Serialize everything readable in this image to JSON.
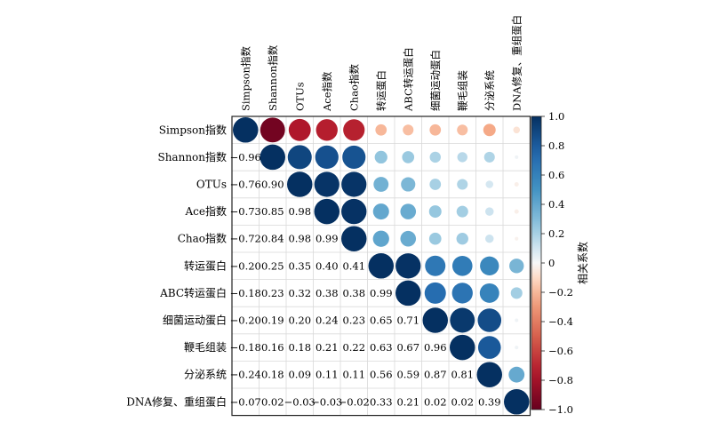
{
  "chart_data": {
    "type": "heatmap",
    "variables": [
      "Simpson指数",
      "Shannon指数",
      "OTUs",
      "Ace指数",
      "Chao指数",
      "转运蛋白",
      "ABC转运蛋白",
      "细菌运动蛋白",
      "鞭毛组装",
      "分泌系统",
      "DNA修复、重组蛋白"
    ],
    "matrix": [
      [
        1.0,
        -0.96,
        -0.76,
        -0.73,
        -0.72,
        -0.2,
        -0.18,
        -0.2,
        -0.18,
        -0.24,
        -0.07
      ],
      [
        -0.96,
        1.0,
        0.9,
        0.85,
        0.84,
        0.25,
        0.23,
        0.19,
        0.16,
        0.18,
        0.02
      ],
      [
        -0.76,
        0.9,
        1.0,
        0.98,
        0.98,
        0.35,
        0.32,
        0.2,
        0.18,
        0.09,
        -0.03
      ],
      [
        -0.73,
        0.85,
        0.98,
        1.0,
        0.99,
        0.4,
        0.38,
        0.24,
        0.21,
        0.11,
        -0.03
      ],
      [
        -0.72,
        0.84,
        0.98,
        0.99,
        1.0,
        0.41,
        0.38,
        0.23,
        0.22,
        0.11,
        -0.02
      ],
      [
        -0.2,
        0.25,
        0.35,
        0.4,
        0.41,
        1.0,
        0.99,
        0.65,
        0.63,
        0.56,
        0.33
      ],
      [
        -0.18,
        0.23,
        0.32,
        0.38,
        0.38,
        0.99,
        1.0,
        0.71,
        0.67,
        0.59,
        0.21
      ],
      [
        -0.2,
        0.19,
        0.2,
        0.24,
        0.23,
        0.65,
        0.71,
        1.0,
        0.96,
        0.87,
        0.02
      ],
      [
        -0.18,
        0.16,
        0.18,
        0.21,
        0.22,
        0.63,
        0.67,
        0.96,
        1.0,
        0.81,
        0.02
      ],
      [
        -0.24,
        0.18,
        0.09,
        0.11,
        0.11,
        0.56,
        0.59,
        0.87,
        0.81,
        1.0,
        0.39
      ],
      [
        -0.07,
        0.02,
        -0.03,
        -0.03,
        -0.02,
        0.33,
        0.21,
        0.02,
        0.02,
        0.39,
        1.0
      ]
    ],
    "lower_triangle_shows_numbers": true,
    "upper_triangle_shows_circles": true,
    "colorbar": {
      "title": "相关系数",
      "range": [
        -1.0,
        1.0
      ],
      "tick_labels": [
        "1.0",
        "0.8",
        "0.6",
        "0.4",
        "0.2",
        "0",
        "−0.2",
        "−0.4",
        "−0.6",
        "−0.8",
        "−1.0"
      ],
      "colors": {
        "strong_negative": "#67001f",
        "negative": "#d6604d",
        "light_negative": "#fddbc7",
        "neutral": "#f7f7f7",
        "light_positive": "#d1e5f0",
        "positive": "#4393c3",
        "strong_positive": "#053061"
      }
    }
  }
}
